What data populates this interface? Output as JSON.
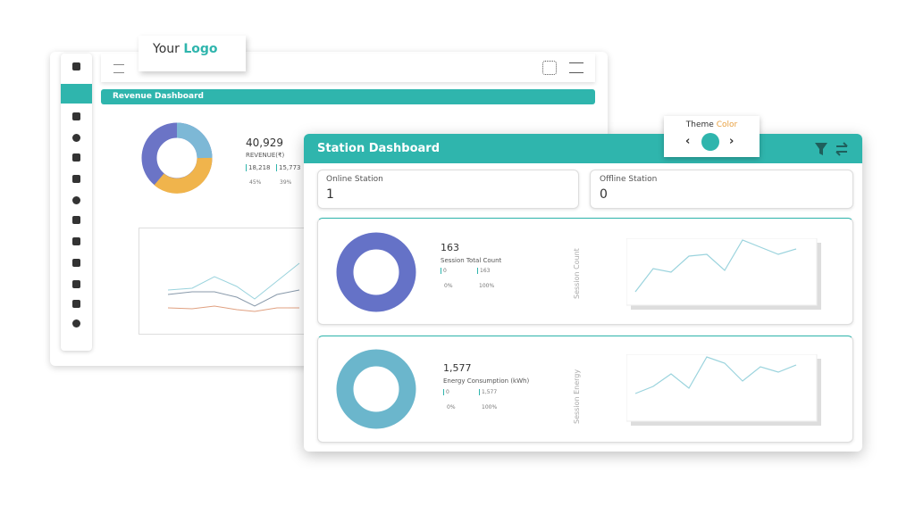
{
  "back_panel": {
    "logo": {
      "prefix": "Your",
      "accent": "Logo"
    },
    "title": "Revenue Dashboard",
    "revenue": {
      "value": "40,929",
      "label": "REVENUE(₹)",
      "items": [
        {
          "value": "18,218",
          "percent": "45%"
        },
        {
          "value": "15,773",
          "percent": "39%"
        }
      ]
    }
  },
  "front_panel": {
    "title": "Station Dashboard",
    "theme": {
      "label": "Theme",
      "accent": "Color"
    },
    "stations": [
      {
        "label": "Online Station",
        "value": "1"
      },
      {
        "label": "Offline Station",
        "value": "0"
      }
    ],
    "cards": [
      {
        "value": "163",
        "label": "Session Total Count",
        "items": [
          {
            "value": "0",
            "percent": "0%"
          },
          {
            "value": "163",
            "percent": "100%"
          }
        ],
        "axis_label": "Session Count"
      },
      {
        "value": "1,577",
        "label": "Energy Consumption (kWh)",
        "items": [
          {
            "value": "0",
            "percent": "0%"
          },
          {
            "value": "1,577",
            "percent": "100%"
          }
        ],
        "axis_label": "Session Energy"
      }
    ]
  }
}
